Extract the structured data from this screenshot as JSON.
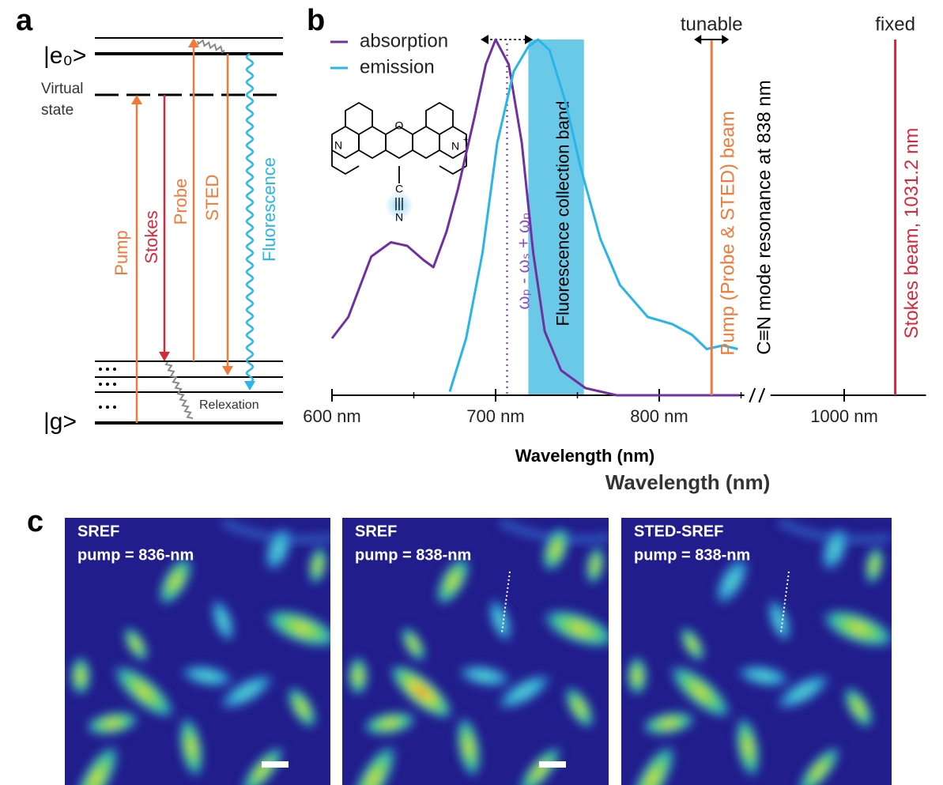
{
  "panel_labels": [
    "a",
    "b",
    "c"
  ],
  "energy_diagram": {
    "excited_state": "|e₀>",
    "virtual_state": [
      "Virtual",
      "state"
    ],
    "ground_state": "|g>",
    "transitions": [
      "Pump",
      "Stokes",
      "Probe",
      "STED",
      "Fluorescence"
    ],
    "relaxation": "Relexation"
  },
  "chart_data": {
    "type": "line",
    "xlabel": "Wavelength (nm)",
    "xlim": [
      600,
      1050
    ],
    "axis_break": [
      852,
      955
    ],
    "ylim": [
      0,
      1
    ],
    "xticks": [
      {
        "value": 600,
        "label": "600 nm"
      },
      {
        "value": 700,
        "label": "700 nm"
      },
      {
        "value": 800,
        "label": "800 nm"
      },
      {
        "value": 1000,
        "label": "1000 nm"
      }
    ],
    "legend": "upper left",
    "series": [
      {
        "name": "absorption",
        "color": "#7030a0",
        "x": [
          600,
          610,
          624,
          636,
          646,
          656,
          662,
          670,
          677,
          687,
          694,
          700,
          708,
          716,
          723,
          730,
          740,
          755,
          774,
          803,
          849
        ],
        "values": [
          0.16,
          0.22,
          0.39,
          0.43,
          0.42,
          0.38,
          0.36,
          0.46,
          0.58,
          0.78,
          0.93,
          1.0,
          0.93,
          0.71,
          0.4,
          0.18,
          0.07,
          0.02,
          0,
          0,
          0
        ]
      },
      {
        "name": "emission",
        "color": "#29b5e8",
        "x": [
          672,
          682,
          692,
          701,
          711,
          720,
          726,
          733,
          743,
          752,
          764,
          776,
          793,
          808,
          820,
          829,
          839,
          848
        ],
        "values": [
          0.01,
          0.16,
          0.4,
          0.71,
          0.91,
          0.98,
          1.0,
          0.97,
          0.82,
          0.64,
          0.44,
          0.31,
          0.22,
          0.2,
          0.17,
          0.13,
          0.14,
          0.13
        ]
      }
    ],
    "band": {
      "label": "Fluorescence collection band",
      "range": [
        720,
        754
      ],
      "color": "#5bc3e6"
    },
    "frequency_line": {
      "label": "ωₚ - ωₛ + ωₚ",
      "value": 707,
      "color": "#8a50c0"
    },
    "markers": [
      {
        "label": "Pump (Probe & STED) beam",
        "value": 832,
        "color": "#f07a3a",
        "note": "tunable"
      },
      {
        "label": "Stokes beam, 1031.2 nm",
        "value": 1031.2,
        "color": "#d8283c",
        "note": "fixed"
      }
    ],
    "resonance": "C≡N mode resonance at 838 nm",
    "molecule_atoms": [
      "N",
      "O",
      "N",
      "+",
      "C",
      "N"
    ]
  },
  "axis_title_repeat": "Wavelength (nm)",
  "images": [
    {
      "title": "SREF",
      "subtitle": "pump = 836-nm"
    },
    {
      "title": "SREF",
      "subtitle": "pump = 838-nm"
    },
    {
      "title": "STED-SREF",
      "subtitle": "pump = 838-nm"
    }
  ]
}
